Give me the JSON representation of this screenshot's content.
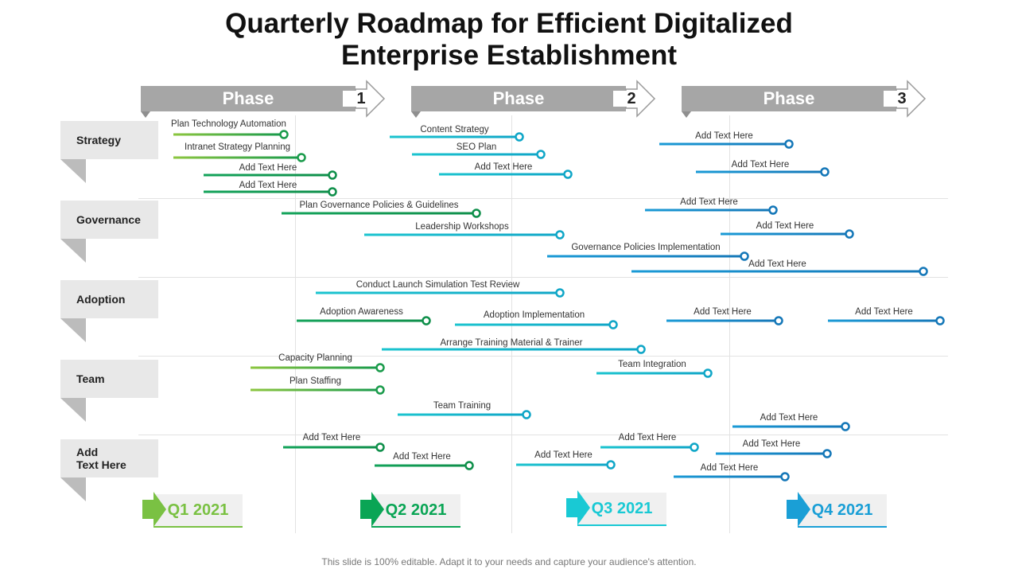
{
  "title": {
    "line1": "Quarterly Roadmap for Efficient Digitalized",
    "line2": "Enterprise Establishment"
  },
  "phases": [
    {
      "label": "Phase",
      "number": "1"
    },
    {
      "label": "Phase",
      "number": "2"
    },
    {
      "label": "Phase",
      "number": "3"
    }
  ],
  "rows": [
    {
      "label": "Strategy"
    },
    {
      "label": "Governance"
    },
    {
      "label": "Adoption"
    },
    {
      "label": "Team"
    },
    {
      "label": "Add\nText Here"
    }
  ],
  "quarters": [
    {
      "label": "Q1 2021",
      "color": "#7ac143"
    },
    {
      "label": "Q2 2021",
      "color": "#0aa555"
    },
    {
      "label": "Q3 2021",
      "color": "#19c9d4"
    },
    {
      "label": "Q4 2021",
      "color": "#1a9fd6"
    }
  ],
  "colors": {
    "green_light": "#8cc63f",
    "green": "#13a35a",
    "teal": "#1bc4cf",
    "blue": "#1a9ad6",
    "phase_gray": "#a6a6a6"
  },
  "tasks": [
    {
      "label": "Plan Technology Automation",
      "start": "Q1 2021",
      "end": "Q1 2021",
      "row": "Strategy"
    },
    {
      "label": "Intranet Strategy Planning",
      "start": "Q1 2021",
      "end": "Q1 2021",
      "row": "Strategy"
    },
    {
      "label": "Add Text Here",
      "start": "Q1 2021",
      "end": "Q2 2021",
      "row": "Strategy"
    },
    {
      "label": "Add Text Here",
      "start": "Q1 2021",
      "end": "Q2 2021",
      "row": "Strategy"
    },
    {
      "label": "Content Strategy",
      "start": "Q2 2021",
      "end": "Q3 2021",
      "row": "Strategy"
    },
    {
      "label": "SEO Plan",
      "start": "Q2 2021",
      "end": "Q3 2021",
      "row": "Strategy"
    },
    {
      "label": "Add Text Here",
      "start": "Q2 2021",
      "end": "Q3 2021",
      "row": "Strategy"
    },
    {
      "label": "Add Text Here",
      "start": "Q3 2021",
      "end": "Q4 2021",
      "row": "Strategy"
    },
    {
      "label": "Add Text Here",
      "start": "Q3 2021",
      "end": "Q4 2021",
      "row": "Strategy"
    },
    {
      "label": "Plan Governance Policies & Guidelines",
      "start": "Q1 2021",
      "end": "Q2 2021",
      "row": "Governance"
    },
    {
      "label": "Leadership Workshops",
      "start": "Q2 2021",
      "end": "Q3 2021",
      "row": "Governance"
    },
    {
      "label": "Governance Policies Implementation",
      "start": "Q3 2021",
      "end": "Q4 2021",
      "row": "Governance"
    },
    {
      "label": "Add Text Here",
      "start": "Q3 2021",
      "end": "Q4 2021",
      "row": "Governance"
    },
    {
      "label": "Add Text Here",
      "start": "Q4 2021",
      "end": "Q4 2021",
      "row": "Governance"
    },
    {
      "label": "Add Text Here",
      "start": "Q3 2021",
      "end": "Q4 2021",
      "row": "Governance"
    },
    {
      "label": "Conduct Launch Simulation Test Review",
      "start": "Q2 2021",
      "end": "Q3 2021",
      "row": "Adoption"
    },
    {
      "label": "Adoption Awareness",
      "start": "Q1 2021",
      "end": "Q2 2021",
      "row": "Adoption"
    },
    {
      "label": "Adoption Implementation",
      "start": "Q2 2021",
      "end": "Q3 2021",
      "row": "Adoption"
    },
    {
      "label": "Add Text Here",
      "start": "Q3 2021",
      "end": "Q4 2021",
      "row": "Adoption"
    },
    {
      "label": "Add Text Here",
      "start": "Q4 2021",
      "end": "Q4 2021",
      "row": "Adoption"
    },
    {
      "label": "Arrange Training Material & Trainer",
      "start": "Q2 2021",
      "end": "Q3 2021",
      "row": "Adoption"
    },
    {
      "label": "Capacity Planning",
      "start": "Q1 2021",
      "end": "Q2 2021",
      "row": "Team"
    },
    {
      "label": "Plan Staffing",
      "start": "Q1 2021",
      "end": "Q2 2021",
      "row": "Team"
    },
    {
      "label": "Team Integration",
      "start": "Q3 2021",
      "end": "Q3 2021",
      "row": "Team"
    },
    {
      "label": "Team Training",
      "start": "Q2 2021",
      "end": "Q3 2021",
      "row": "Team"
    },
    {
      "label": "Add Text Here",
      "start": "Q4 2021",
      "end": "Q4 2021",
      "row": "Team"
    },
    {
      "label": "Add Text Here",
      "start": "Q1 2021",
      "end": "Q2 2021",
      "row": "Add Text Here"
    },
    {
      "label": "Add Text Here",
      "start": "Q2 2021",
      "end": "Q2 2021",
      "row": "Add Text Here"
    },
    {
      "label": "Add Text Here",
      "start": "Q3 2021",
      "end": "Q3 2021",
      "row": "Add Text Here"
    },
    {
      "label": "Add Text Here",
      "start": "Q3 2021",
      "end": "Q3 2021",
      "row": "Add Text Here"
    },
    {
      "label": "Add Text Here",
      "start": "Q4 2021",
      "end": "Q4 2021",
      "row": "Add Text Here"
    },
    {
      "label": "Add Text Here",
      "start": "Q3 2021",
      "end": "Q4 2021",
      "row": "Add Text Here"
    }
  ],
  "footer": "This slide is 100% editable. Adapt it to your needs and capture your audience's attention."
}
